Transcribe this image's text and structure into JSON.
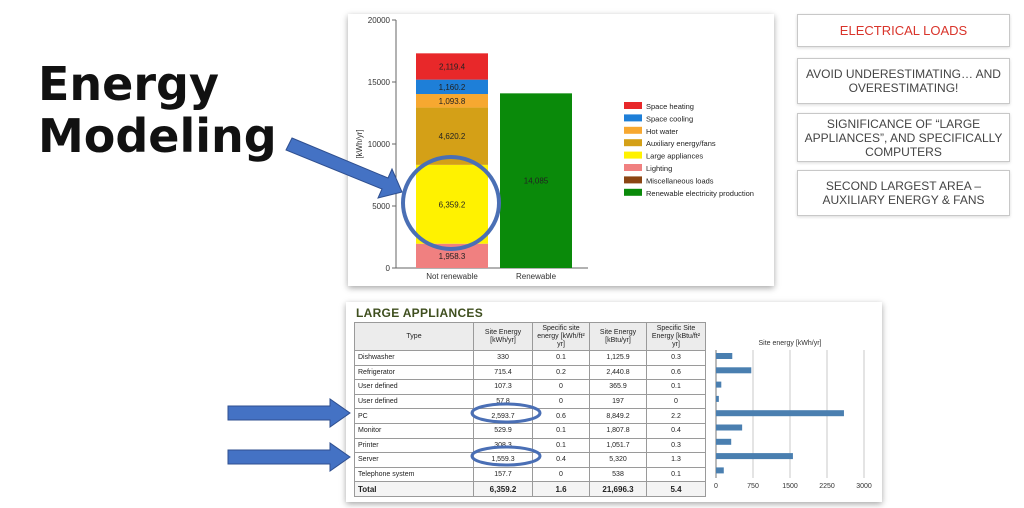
{
  "slide": {
    "title_line1": "Energy",
    "title_line2": "Modeling"
  },
  "callouts": [
    {
      "text": "ELECTRICAL LOADS",
      "color": "#d9342b"
    },
    {
      "text": "AVOID UNDERESTIMATING… AND OVERESTIMATING!"
    },
    {
      "text": "SIGNIFICANCE OF “LARGE APPLIANCES”, AND SPECIFICALLY COMPUTERS"
    },
    {
      "text": "SECOND LARGEST AREA – AUXILIARY ENERGY & FANS"
    }
  ],
  "chart_data": [
    {
      "type": "bar",
      "stacked": true,
      "ylabel": "[kWh/yr]",
      "ylim": [
        0,
        20000
      ],
      "yticks": [
        0,
        5000,
        10000,
        15000,
        20000
      ],
      "categories": [
        "Not renewable",
        "Renewable"
      ],
      "legend_position": "right",
      "series": [
        {
          "name": "Lighting",
          "color": "#f08080",
          "values": [
            1958.3,
            0
          ],
          "labels": [
            "1,958.3",
            ""
          ]
        },
        {
          "name": "Large appliances",
          "color": "#fff200",
          "values": [
            6359.2,
            0
          ],
          "labels": [
            "6,359.2",
            ""
          ]
        },
        {
          "name": "Auxiliary energy/fans",
          "color": "#d4a017",
          "values": [
            4620.2,
            0
          ],
          "labels": [
            "4,620.2",
            ""
          ]
        },
        {
          "name": "Hot water",
          "color": "#f7a830",
          "values": [
            1093.8,
            0
          ],
          "labels": [
            "1,093.8",
            ""
          ]
        },
        {
          "name": "Space cooling",
          "color": "#1e7fd8",
          "values": [
            1160.2,
            0
          ],
          "labels": [
            "1,160.2",
            ""
          ]
        },
        {
          "name": "Space heating",
          "color": "#e8282a",
          "values": [
            2119.4,
            0
          ],
          "labels": [
            "2,119.4",
            ""
          ]
        },
        {
          "name": "Renewable electricity production",
          "color": "#0a8a0a",
          "values": [
            0,
            14085
          ],
          "labels": [
            "",
            "14,085"
          ]
        }
      ],
      "legend": [
        {
          "name": "Space heating",
          "color": "#e8282a"
        },
        {
          "name": "Space cooling",
          "color": "#1e7fd8"
        },
        {
          "name": "Hot water",
          "color": "#f7a830"
        },
        {
          "name": "Auxiliary energy/fans",
          "color": "#d4a017"
        },
        {
          "name": "Large appliances",
          "color": "#fff200"
        },
        {
          "name": "Lighting",
          "color": "#f08080"
        },
        {
          "name": "Miscellaneous loads",
          "color": "#8b4513"
        },
        {
          "name": "Renewable electricity production",
          "color": "#0a8a0a"
        }
      ],
      "highlighted": "Large appliances"
    },
    {
      "type": "bar",
      "orientation": "horizontal",
      "title": "Site energy [kWh/yr]",
      "xlim": [
        0,
        3000
      ],
      "xticks": [
        "0",
        "750",
        "1500",
        "2250",
        "3000"
      ],
      "categories": [
        "Dishwasher",
        "Refrigerator",
        "User defined",
        "User defined",
        "PC",
        "Monitor",
        "Printer",
        "Server",
        "Telephone system"
      ],
      "values": [
        330,
        715.4,
        107.3,
        57.8,
        2593.7,
        529.9,
        308.3,
        1559.3,
        157.7
      ],
      "color": "#4a7fb0"
    }
  ],
  "table": {
    "heading": "LARGE APPLIANCES",
    "columns": [
      "Type",
      "Site Energy [kWh/yr]",
      "Specific site energy [kWh/ft² yr]",
      "Site Energy [kBtu/yr]",
      "Specific Site Energy [kBtu/ft² yr]"
    ],
    "rows": [
      [
        "Dishwasher",
        "330",
        "0.1",
        "1,125.9",
        "0.3"
      ],
      [
        "Refrigerator",
        "715.4",
        "0.2",
        "2,440.8",
        "0.6"
      ],
      [
        "User defined",
        "107.3",
        "0",
        "365.9",
        "0.1"
      ],
      [
        "User defined",
        "57.8",
        "0",
        "197",
        "0"
      ],
      [
        "PC",
        "2,593.7",
        "0.6",
        "8,849.2",
        "2.2"
      ],
      [
        "Monitor",
        "529.9",
        "0.1",
        "1,807.8",
        "0.4"
      ],
      [
        "Printer",
        "308.3",
        "0.1",
        "1,051.7",
        "0.3"
      ],
      [
        "Server",
        "1,559.3",
        "0.4",
        "5,320",
        "1.3"
      ],
      [
        "Telephone system",
        "157.7",
        "0",
        "538",
        "0.1"
      ]
    ],
    "total": [
      "Total",
      "6,359.2",
      "1.6",
      "21,696.3",
      "5.4"
    ],
    "highlighted_rows": [
      "PC",
      "Server"
    ]
  },
  "colors": {
    "arrow": "#4472c4",
    "highlight_circle": "#4a6fb5"
  }
}
